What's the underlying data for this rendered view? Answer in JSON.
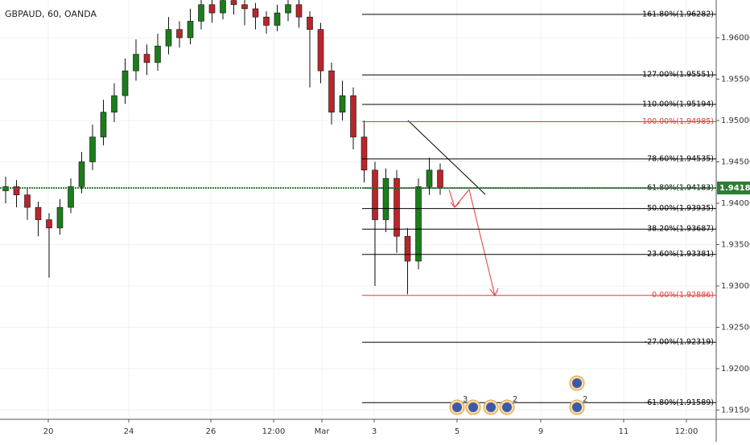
{
  "chart_data": {
    "type": "candlestick",
    "title": "GBPAUD, 60, OANDA",
    "ylim": [
      1.91388,
      1.96456
    ],
    "yticks": [
      {
        "value": 1.915,
        "label": "1.91500"
      },
      {
        "value": 1.92,
        "label": "1.92000"
      },
      {
        "value": 1.925,
        "label": "1.92500"
      },
      {
        "value": 1.93,
        "label": "1.93000"
      },
      {
        "value": 1.935,
        "label": "1.93500"
      },
      {
        "value": 1.94,
        "label": "1.94000"
      },
      {
        "value": 1.945,
        "label": "1.94500"
      },
      {
        "value": 1.95,
        "label": "1.95000"
      },
      {
        "value": 1.955,
        "label": "1.95500"
      },
      {
        "value": 1.96,
        "label": "1.96000"
      }
    ],
    "x_labels": [
      "20",
      "24",
      "26",
      "12:00",
      "Mar",
      "3",
      "5",
      "9",
      "11",
      "12:00"
    ],
    "grid": true,
    "up_color": "#1b7d1b",
    "down_color": "#b8262c",
    "open": [
      1.9415,
      1.942,
      1.941,
      1.9395,
      1.938,
      1.937,
      1.9395,
      1.942,
      1.945,
      1.948,
      1.951,
      1.953,
      1.956,
      1.958,
      1.957,
      1.959,
      1.961,
      1.96,
      1.962,
      1.964,
      1.963,
      1.9645,
      1.964,
      1.9635,
      1.9625,
      1.9615,
      1.963,
      1.964,
      1.9625,
      1.961,
      1.956,
      1.951,
      1.953,
      1.948,
      1.944,
      1.938,
      1.943,
      1.936,
      1.933,
      1.942,
      1.944
    ],
    "high": [
      1.9432,
      1.9428,
      1.9418,
      1.9402,
      1.9388,
      1.9405,
      1.943,
      1.9462,
      1.9495,
      1.9525,
      1.9545,
      1.9575,
      1.9598,
      1.9592,
      1.9605,
      1.9625,
      1.962,
      1.9635,
      1.9646,
      1.9646,
      1.9646,
      1.9646,
      1.9646,
      1.9642,
      1.9632,
      1.964,
      1.9646,
      1.9646,
      1.9632,
      1.9618,
      1.957,
      1.9548,
      1.954,
      1.95,
      1.945,
      1.9442,
      1.944,
      1.937,
      1.943,
      1.9455,
      1.9448
    ],
    "low": [
      1.94,
      1.9395,
      1.938,
      1.936,
      1.931,
      1.9362,
      1.9388,
      1.9412,
      1.944,
      1.947,
      1.9498,
      1.952,
      1.9548,
      1.9555,
      1.956,
      1.958,
      1.9588,
      1.9592,
      1.961,
      1.9618,
      1.9622,
      1.9628,
      1.9615,
      1.961,
      1.9605,
      1.9608,
      1.962,
      1.9612,
      1.954,
      1.9545,
      1.9495,
      1.95,
      1.9465,
      1.9425,
      1.93,
      1.9365,
      1.934,
      1.929,
      1.932,
      1.941,
      1.941
    ],
    "close": [
      1.942,
      1.941,
      1.9395,
      1.938,
      1.937,
      1.9395,
      1.942,
      1.945,
      1.948,
      1.951,
      1.953,
      1.956,
      1.958,
      1.957,
      1.959,
      1.961,
      1.96,
      1.962,
      1.964,
      1.963,
      1.9645,
      1.964,
      1.9635,
      1.9625,
      1.9615,
      1.963,
      1.964,
      1.9625,
      1.961,
      1.956,
      1.951,
      1.953,
      1.948,
      1.944,
      1.938,
      1.943,
      1.936,
      1.933,
      1.942,
      1.944,
      1.9418
    ],
    "current_price": 1.94184,
    "current_color": "#2e7d32",
    "fib_levels": [
      {
        "label": "161.80%(1.96282)",
        "value": 1.96282,
        "color": "#000000"
      },
      {
        "label": "127.00%(1.95551)",
        "value": 1.95551,
        "color": "#000000"
      },
      {
        "label": "110.00%(1.95194)",
        "value": 1.95194,
        "color": "#000000"
      },
      {
        "label": "100.00%(1.94985)",
        "value": 1.94985,
        "color": "#e53935"
      },
      {
        "label": "78.60%(1.94535)",
        "value": 1.94535,
        "color": "#000000"
      },
      {
        "label": "61.80%(1.94183)",
        "value": 1.94183,
        "color": "#000000"
      },
      {
        "label": "50.00%(1.93935)",
        "value": 1.93935,
        "color": "#000000"
      },
      {
        "label": "38.20%(1.93687)",
        "value": 1.93687,
        "color": "#000000"
      },
      {
        "label": "23.60%(1.93381)",
        "value": 1.93381,
        "color": "#000000"
      },
      {
        "label": "0.00%(1.92886)",
        "value": 1.92886,
        "color": "#e53935"
      },
      {
        "label": "-27.00%(1.92319)",
        "value": 1.92319,
        "color": "#000000"
      },
      {
        "label": "-61.80%(1.91589)",
        "value": 1.91589,
        "color": "#000000"
      }
    ],
    "event_counts": [
      "3",
      "2",
      "2"
    ]
  }
}
